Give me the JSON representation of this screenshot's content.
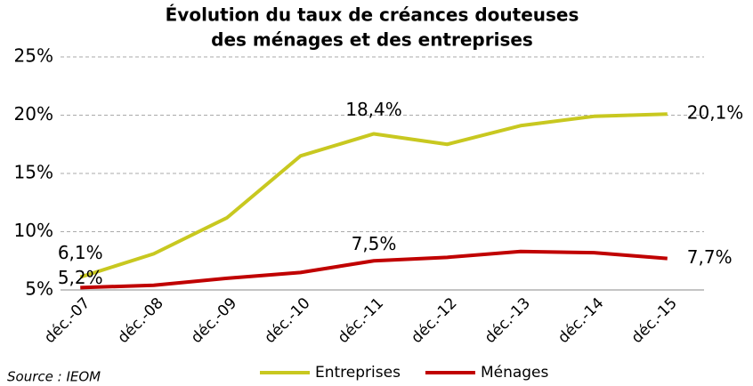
{
  "chart_data": {
    "type": "line",
    "title": [
      "Évolution du taux de créances douteuses",
      "des ménages  et des entreprises"
    ],
    "categories": [
      "déc.-07",
      "déc.-08",
      "déc.-09",
      "déc.-10",
      "déc.-11",
      "déc.-12",
      "déc.-13",
      "déc.-14",
      "déc.-15"
    ],
    "series": [
      {
        "name": "Entreprises",
        "color": "#c8c820",
        "values": [
          6.1,
          8.1,
          11.2,
          16.5,
          18.4,
          17.5,
          19.1,
          19.9,
          20.1
        ],
        "value_labels": [
          "6,1%",
          null,
          null,
          null,
          "18,4%",
          null,
          null,
          null,
          "20,1%"
        ]
      },
      {
        "name": "Ménages",
        "color": "#c00000",
        "values": [
          5.2,
          5.4,
          6.0,
          6.5,
          7.5,
          7.8,
          8.3,
          8.2,
          7.7
        ],
        "value_labels": [
          "5,2%",
          null,
          null,
          null,
          "7,5%",
          null,
          null,
          null,
          "7,7%"
        ]
      }
    ],
    "ylim": [
      5,
      25
    ],
    "yticks": [
      {
        "value": 5,
        "label": "5%"
      },
      {
        "value": 10,
        "label": "10%"
      },
      {
        "value": 15,
        "label": "15%"
      },
      {
        "value": 20,
        "label": "20%"
      },
      {
        "value": 25,
        "label": "25%"
      }
    ],
    "grid": true,
    "legend": "bottom",
    "source": "Source : IEOM"
  }
}
